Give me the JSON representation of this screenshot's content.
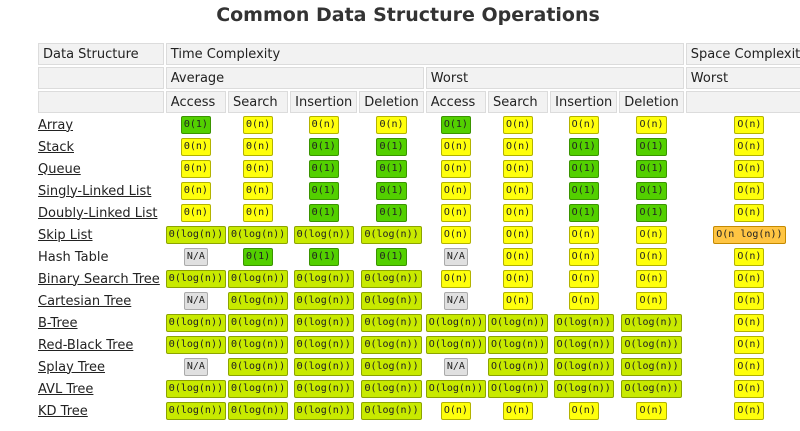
{
  "title": "Common Data Structure Operations",
  "headers": {
    "data_structure": "Data Structure",
    "time_complexity": "Time Complexity",
    "space_complexity": "Space Complexity",
    "average": "Average",
    "worst": "Worst",
    "worst_space": "Worst",
    "ops": [
      "Access",
      "Search",
      "Insertion",
      "Deletion",
      "Access",
      "Search",
      "Insertion",
      "Deletion"
    ]
  },
  "legend_colors": {
    "green": "#53d000",
    "yellowgreen": "#c8ea00",
    "yellow": "#ffff0c",
    "orange": "#ffc543",
    "gray": "#e0e0e0"
  },
  "rows": [
    {
      "name": "Array",
      "link": true,
      "cells": [
        [
          "Θ(1)",
          "green"
        ],
        [
          "Θ(n)",
          "yellow"
        ],
        [
          "Θ(n)",
          "yellow"
        ],
        [
          "Θ(n)",
          "yellow"
        ],
        [
          "O(1)",
          "green"
        ],
        [
          "O(n)",
          "yellow"
        ],
        [
          "O(n)",
          "yellow"
        ],
        [
          "O(n)",
          "yellow"
        ],
        [
          "O(n)",
          "yellow"
        ]
      ]
    },
    {
      "name": "Stack",
      "link": true,
      "cells": [
        [
          "Θ(n)",
          "yellow"
        ],
        [
          "Θ(n)",
          "yellow"
        ],
        [
          "Θ(1)",
          "green"
        ],
        [
          "Θ(1)",
          "green"
        ],
        [
          "O(n)",
          "yellow"
        ],
        [
          "O(n)",
          "yellow"
        ],
        [
          "O(1)",
          "green"
        ],
        [
          "O(1)",
          "green"
        ],
        [
          "O(n)",
          "yellow"
        ]
      ]
    },
    {
      "name": "Queue",
      "link": true,
      "cells": [
        [
          "Θ(n)",
          "yellow"
        ],
        [
          "Θ(n)",
          "yellow"
        ],
        [
          "Θ(1)",
          "green"
        ],
        [
          "Θ(1)",
          "green"
        ],
        [
          "O(n)",
          "yellow"
        ],
        [
          "O(n)",
          "yellow"
        ],
        [
          "O(1)",
          "green"
        ],
        [
          "O(1)",
          "green"
        ],
        [
          "O(n)",
          "yellow"
        ]
      ]
    },
    {
      "name": "Singly-Linked List",
      "link": true,
      "cells": [
        [
          "Θ(n)",
          "yellow"
        ],
        [
          "Θ(n)",
          "yellow"
        ],
        [
          "Θ(1)",
          "green"
        ],
        [
          "Θ(1)",
          "green"
        ],
        [
          "O(n)",
          "yellow"
        ],
        [
          "O(n)",
          "yellow"
        ],
        [
          "O(1)",
          "green"
        ],
        [
          "O(1)",
          "green"
        ],
        [
          "O(n)",
          "yellow"
        ]
      ]
    },
    {
      "name": "Doubly-Linked List",
      "link": true,
      "cells": [
        [
          "Θ(n)",
          "yellow"
        ],
        [
          "Θ(n)",
          "yellow"
        ],
        [
          "Θ(1)",
          "green"
        ],
        [
          "Θ(1)",
          "green"
        ],
        [
          "O(n)",
          "yellow"
        ],
        [
          "O(n)",
          "yellow"
        ],
        [
          "O(1)",
          "green"
        ],
        [
          "O(1)",
          "green"
        ],
        [
          "O(n)",
          "yellow"
        ]
      ]
    },
    {
      "name": "Skip List",
      "link": true,
      "cells": [
        [
          "Θ(log(n))",
          "yellowgreen"
        ],
        [
          "Θ(log(n))",
          "yellowgreen"
        ],
        [
          "Θ(log(n))",
          "yellowgreen"
        ],
        [
          "Θ(log(n))",
          "yellowgreen"
        ],
        [
          "O(n)",
          "yellow"
        ],
        [
          "O(n)",
          "yellow"
        ],
        [
          "O(n)",
          "yellow"
        ],
        [
          "O(n)",
          "yellow"
        ],
        [
          "O(n log(n))",
          "orange"
        ]
      ]
    },
    {
      "name": "Hash Table",
      "link": false,
      "cells": [
        [
          "N/A",
          "gray"
        ],
        [
          "Θ(1)",
          "green"
        ],
        [
          "Θ(1)",
          "green"
        ],
        [
          "Θ(1)",
          "green"
        ],
        [
          "N/A",
          "gray"
        ],
        [
          "O(n)",
          "yellow"
        ],
        [
          "O(n)",
          "yellow"
        ],
        [
          "O(n)",
          "yellow"
        ],
        [
          "O(n)",
          "yellow"
        ]
      ]
    },
    {
      "name": "Binary Search Tree",
      "link": true,
      "cells": [
        [
          "Θ(log(n))",
          "yellowgreen"
        ],
        [
          "Θ(log(n))",
          "yellowgreen"
        ],
        [
          "Θ(log(n))",
          "yellowgreen"
        ],
        [
          "Θ(log(n))",
          "yellowgreen"
        ],
        [
          "O(n)",
          "yellow"
        ],
        [
          "O(n)",
          "yellow"
        ],
        [
          "O(n)",
          "yellow"
        ],
        [
          "O(n)",
          "yellow"
        ],
        [
          "O(n)",
          "yellow"
        ]
      ]
    },
    {
      "name": "Cartesian Tree",
      "link": true,
      "cells": [
        [
          "N/A",
          "gray"
        ],
        [
          "Θ(log(n))",
          "yellowgreen"
        ],
        [
          "Θ(log(n))",
          "yellowgreen"
        ],
        [
          "Θ(log(n))",
          "yellowgreen"
        ],
        [
          "N/A",
          "gray"
        ],
        [
          "O(n)",
          "yellow"
        ],
        [
          "O(n)",
          "yellow"
        ],
        [
          "O(n)",
          "yellow"
        ],
        [
          "O(n)",
          "yellow"
        ]
      ]
    },
    {
      "name": "B-Tree",
      "link": true,
      "cells": [
        [
          "Θ(log(n))",
          "yellowgreen"
        ],
        [
          "Θ(log(n))",
          "yellowgreen"
        ],
        [
          "Θ(log(n))",
          "yellowgreen"
        ],
        [
          "Θ(log(n))",
          "yellowgreen"
        ],
        [
          "O(log(n))",
          "yellowgreen"
        ],
        [
          "O(log(n))",
          "yellowgreen"
        ],
        [
          "O(log(n))",
          "yellowgreen"
        ],
        [
          "O(log(n))",
          "yellowgreen"
        ],
        [
          "O(n)",
          "yellow"
        ]
      ]
    },
    {
      "name": "Red-Black Tree",
      "link": true,
      "cells": [
        [
          "Θ(log(n))",
          "yellowgreen"
        ],
        [
          "Θ(log(n))",
          "yellowgreen"
        ],
        [
          "Θ(log(n))",
          "yellowgreen"
        ],
        [
          "Θ(log(n))",
          "yellowgreen"
        ],
        [
          "O(log(n))",
          "yellowgreen"
        ],
        [
          "O(log(n))",
          "yellowgreen"
        ],
        [
          "O(log(n))",
          "yellowgreen"
        ],
        [
          "O(log(n))",
          "yellowgreen"
        ],
        [
          "O(n)",
          "yellow"
        ]
      ]
    },
    {
      "name": "Splay Tree",
      "link": true,
      "cells": [
        [
          "N/A",
          "gray"
        ],
        [
          "Θ(log(n))",
          "yellowgreen"
        ],
        [
          "Θ(log(n))",
          "yellowgreen"
        ],
        [
          "Θ(log(n))",
          "yellowgreen"
        ],
        [
          "N/A",
          "gray"
        ],
        [
          "O(log(n))",
          "yellowgreen"
        ],
        [
          "O(log(n))",
          "yellowgreen"
        ],
        [
          "O(log(n))",
          "yellowgreen"
        ],
        [
          "O(n)",
          "yellow"
        ]
      ]
    },
    {
      "name": "AVL Tree",
      "link": true,
      "cells": [
        [
          "Θ(log(n))",
          "yellowgreen"
        ],
        [
          "Θ(log(n))",
          "yellowgreen"
        ],
        [
          "Θ(log(n))",
          "yellowgreen"
        ],
        [
          "Θ(log(n))",
          "yellowgreen"
        ],
        [
          "O(log(n))",
          "yellowgreen"
        ],
        [
          "O(log(n))",
          "yellowgreen"
        ],
        [
          "O(log(n))",
          "yellowgreen"
        ],
        [
          "O(log(n))",
          "yellowgreen"
        ],
        [
          "O(n)",
          "yellow"
        ]
      ]
    },
    {
      "name": "KD Tree",
      "link": true,
      "cells": [
        [
          "Θ(log(n))",
          "yellowgreen"
        ],
        [
          "Θ(log(n))",
          "yellowgreen"
        ],
        [
          "Θ(log(n))",
          "yellowgreen"
        ],
        [
          "Θ(log(n))",
          "yellowgreen"
        ],
        [
          "O(n)",
          "yellow"
        ],
        [
          "O(n)",
          "yellow"
        ],
        [
          "O(n)",
          "yellow"
        ],
        [
          "O(n)",
          "yellow"
        ],
        [
          "O(n)",
          "yellow"
        ]
      ]
    }
  ]
}
